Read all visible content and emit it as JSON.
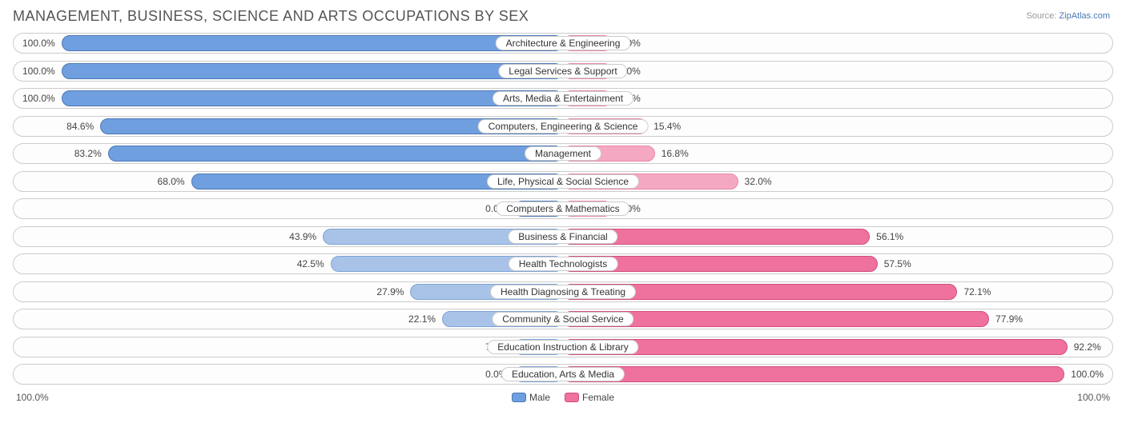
{
  "title": "MANAGEMENT, BUSINESS, SCIENCE AND ARTS OCCUPATIONS BY SEX",
  "source": {
    "label": "Source:",
    "site": "ZipAtlas.com"
  },
  "colors": {
    "male_fill": "#6f9fde",
    "male_border": "#4a78b5",
    "male_faded_fill": "#a9c3e8",
    "male_faded_border": "#7ea3d6",
    "female_fill": "#ef719e",
    "female_border": "#d14e80",
    "female_faded_fill": "#f5a8c2",
    "female_faded_border": "#e887aa",
    "row_border": "#cccccc",
    "text": "#444444"
  },
  "legend": {
    "male": "Male",
    "female": "Female"
  },
  "axis": {
    "left": "100.0%",
    "right": "100.0%"
  },
  "min_bar_pct": 9,
  "rows": [
    {
      "label": "Architecture & Engineering",
      "male": 100.0,
      "female": 0.0,
      "male_text": "100.0%",
      "female_text": "0.0%"
    },
    {
      "label": "Legal Services & Support",
      "male": 100.0,
      "female": 0.0,
      "male_text": "100.0%",
      "female_text": "0.0%"
    },
    {
      "label": "Arts, Media & Entertainment",
      "male": 100.0,
      "female": 0.0,
      "male_text": "100.0%",
      "female_text": "0.0%"
    },
    {
      "label": "Computers, Engineering & Science",
      "male": 84.6,
      "female": 15.4,
      "male_text": "84.6%",
      "female_text": "15.4%"
    },
    {
      "label": "Management",
      "male": 83.2,
      "female": 16.8,
      "male_text": "83.2%",
      "female_text": "16.8%"
    },
    {
      "label": "Life, Physical & Social Science",
      "male": 68.0,
      "female": 32.0,
      "male_text": "68.0%",
      "female_text": "32.0%"
    },
    {
      "label": "Computers & Mathematics",
      "male": 0.0,
      "female": 0.0,
      "male_text": "0.0%",
      "female_text": "0.0%"
    },
    {
      "label": "Business & Financial",
      "male": 43.9,
      "female": 56.1,
      "male_text": "43.9%",
      "female_text": "56.1%"
    },
    {
      "label": "Health Technologists",
      "male": 42.5,
      "female": 57.5,
      "male_text": "42.5%",
      "female_text": "57.5%"
    },
    {
      "label": "Health Diagnosing & Treating",
      "male": 27.9,
      "female": 72.1,
      "male_text": "27.9%",
      "female_text": "72.1%"
    },
    {
      "label": "Community & Social Service",
      "male": 22.1,
      "female": 77.9,
      "male_text": "22.1%",
      "female_text": "77.9%"
    },
    {
      "label": "Education Instruction & Library",
      "male": 7.8,
      "female": 92.2,
      "male_text": "7.8%",
      "female_text": "92.2%"
    },
    {
      "label": "Education, Arts & Media",
      "male": 0.0,
      "female": 100.0,
      "male_text": "0.0%",
      "female_text": "100.0%"
    }
  ]
}
